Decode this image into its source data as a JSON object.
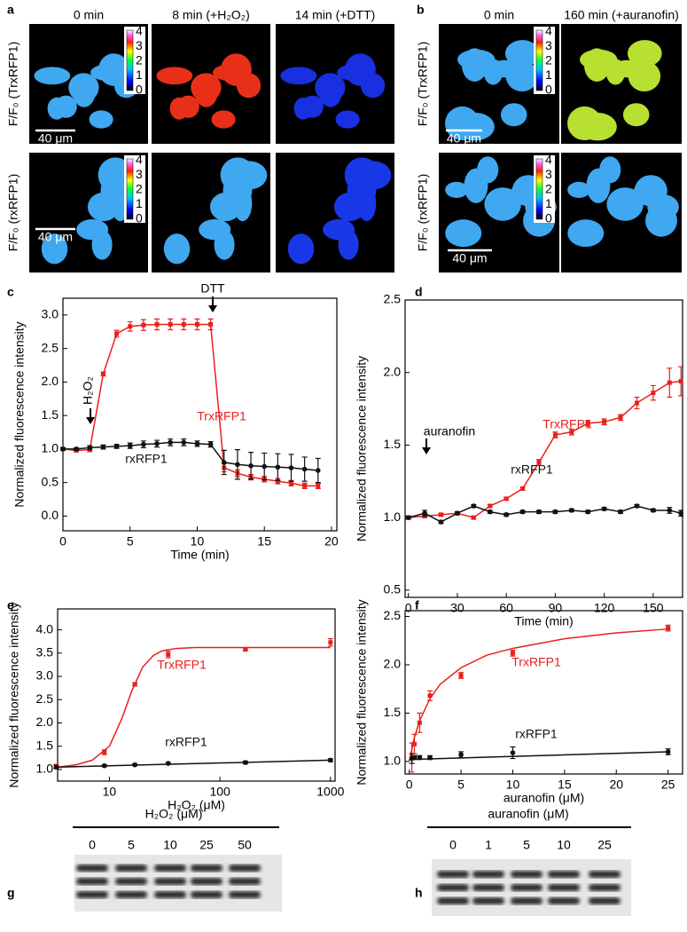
{
  "panel_labels": [
    "a",
    "b",
    "c",
    "d",
    "e",
    "f",
    "g",
    "h"
  ],
  "images": [
    {
      "columns": [
        "0 min",
        "8 min (+H₂O₂)",
        "14 min (+DTT)"
      ],
      "rows": [
        "F/F₀ (TrxRFP1)",
        "F/F₀ (rxRFP1)"
      ],
      "scale_bar": "40 μm",
      "colorbar_ticks": [
        0,
        1,
        2,
        3,
        4
      ]
    },
    {
      "columns": [
        "0 min",
        "160 min (+auranofin)"
      ],
      "rows": [
        "F/F₀ (TrxRFP1)",
        "F/F₀ (rxRFP1)"
      ],
      "scale_bar": "40 μm",
      "colorbar_ticks": [
        0,
        1,
        2,
        3,
        4
      ]
    }
  ],
  "chart_data": [
    {
      "type": "line",
      "xlabel": "Time (min)",
      "ylabel": "Normalized fluorescence intensity",
      "xlim": [
        0,
        20.4
      ],
      "ylim": [
        -0.22,
        3.25
      ],
      "xticks": [
        0,
        5,
        10,
        15,
        20
      ],
      "yticks": [
        {
          "value": 0,
          "label": "0.0"
        },
        0.5,
        {
          "value": 1,
          "label": "1.0"
        },
        1.5,
        {
          "value": 2,
          "label": "2.0"
        },
        2.5,
        {
          "value": 3,
          "label": "3.0"
        }
      ],
      "annotations": [
        "DTT",
        "H₂O₂"
      ],
      "series": [
        {
          "name": "TrxRFP1",
          "color": "#e8201c",
          "marker": "square",
          "x": [
            0,
            1,
            2,
            3,
            4,
            5,
            6,
            7,
            8,
            9,
            10,
            11,
            12,
            13,
            14,
            15,
            16,
            17,
            18,
            19
          ],
          "values": [
            1.0,
            0.98,
            0.99,
            2.12,
            2.72,
            2.83,
            2.85,
            2.86,
            2.86,
            2.86,
            2.86,
            2.86,
            0.72,
            0.64,
            0.58,
            0.55,
            0.52,
            0.49,
            0.45,
            0.45
          ],
          "errors": [
            0.02,
            0.02,
            0.03,
            0.03,
            0.05,
            0.07,
            0.08,
            0.08,
            0.08,
            0.08,
            0.08,
            0.08,
            0.06,
            0.05,
            0.04,
            0.04,
            0.04,
            0.04,
            0.04,
            0.04
          ]
        },
        {
          "name": "rxRFP1",
          "color": "#111111",
          "marker": "circle",
          "x": [
            0,
            1,
            2,
            3,
            4,
            5,
            6,
            7,
            8,
            9,
            10,
            11,
            12,
            13,
            14,
            15,
            16,
            17,
            18,
            19
          ],
          "values": [
            1.0,
            1.0,
            1.02,
            1.03,
            1.04,
            1.05,
            1.07,
            1.08,
            1.1,
            1.1,
            1.08,
            1.07,
            0.8,
            0.77,
            0.75,
            0.74,
            0.73,
            0.72,
            0.7,
            0.68
          ],
          "errors": [
            0.02,
            0.02,
            0.03,
            0.03,
            0.03,
            0.04,
            0.05,
            0.05,
            0.05,
            0.05,
            0.04,
            0.04,
            0.18,
            0.22,
            0.2,
            0.2,
            0.2,
            0.2,
            0.18,
            0.18
          ]
        }
      ]
    },
    {
      "type": "line",
      "xlabel": "Time (min)",
      "ylabel": "Normalized fluorescence intensity",
      "xlim": [
        -2,
        168
      ],
      "ylim": [
        0.45,
        2.5
      ],
      "xticks": [
        0,
        30,
        60,
        90,
        120,
        150
      ],
      "yticks": [
        0.5,
        {
          "value": 1,
          "label": "1.0"
        },
        1.5,
        {
          "value": 2,
          "label": "2.0"
        },
        2.5
      ],
      "annotations": [
        "auranofin"
      ],
      "series": [
        {
          "name": "TrxRFP1",
          "color": "#e8201c",
          "marker": "square",
          "x": [
            0,
            10,
            20,
            30,
            40,
            50,
            60,
            70,
            80,
            90,
            100,
            110,
            120,
            130,
            140,
            150,
            160,
            167
          ],
          "values": [
            1.0,
            1.01,
            1.02,
            1.03,
            1.0,
            1.08,
            1.13,
            1.2,
            1.38,
            1.57,
            1.59,
            1.65,
            1.66,
            1.69,
            1.79,
            1.86,
            1.93,
            1.94
          ],
          "errors": [
            0.01,
            0.01,
            0.01,
            0.01,
            0.01,
            0.01,
            0.01,
            0.01,
            0.02,
            0.02,
            0.02,
            0.02,
            0.02,
            0.02,
            0.04,
            0.05,
            0.1,
            0.1
          ]
        },
        {
          "name": "rxRFP1",
          "color": "#111111",
          "marker": "circle",
          "x": [
            0,
            10,
            20,
            30,
            40,
            50,
            60,
            70,
            80,
            90,
            100,
            110,
            120,
            130,
            140,
            150,
            160,
            167
          ],
          "values": [
            1.0,
            1.03,
            0.97,
            1.03,
            1.08,
            1.04,
            1.02,
            1.04,
            1.04,
            1.04,
            1.05,
            1.04,
            1.06,
            1.04,
            1.08,
            1.05,
            1.05,
            1.03
          ],
          "errors": [
            0.01,
            0.02,
            0.01,
            0.01,
            0.01,
            0.01,
            0.01,
            0.01,
            0.01,
            0.01,
            0.01,
            0.01,
            0.01,
            0.01,
            0.01,
            0.01,
            0.02,
            0.02
          ]
        }
      ]
    },
    {
      "type": "scatter",
      "xlabel": "H₂O₂ (μM)",
      "ylabel": "Normalized fluorescence intensity",
      "xscale": "log",
      "xlim": [
        3.4,
        1100
      ],
      "ylim": [
        0.75,
        4.45
      ],
      "xticks": [
        10,
        100,
        1000
      ],
      "yticks": [
        {
          "value": 1,
          "label": "1.0"
        },
        1.5,
        {
          "value": 2,
          "label": "2.0"
        },
        2.5,
        {
          "value": 3,
          "label": "3.0"
        },
        3.5,
        {
          "value": 4,
          "label": "4.0"
        }
      ],
      "series": [
        {
          "name": "TrxRFP1",
          "color": "#e8201c",
          "marker": "square",
          "x": [
            3.3,
            9,
            17,
            34,
            170,
            1000
          ],
          "values": [
            1.07,
            1.37,
            2.83,
            3.47,
            3.58,
            3.73
          ],
          "errors": [
            0.04,
            0.05,
            0.03,
            0.07,
            0.03,
            0.08
          ]
        },
        {
          "name": "rxRFP1",
          "color": "#111111",
          "marker": "circle",
          "x": [
            3.3,
            9,
            17,
            34,
            170,
            1000
          ],
          "values": [
            1.05,
            1.08,
            1.1,
            1.13,
            1.15,
            1.2
          ],
          "errors": [
            0.03,
            0.02,
            0.02,
            0.02,
            0.03,
            0.03
          ]
        }
      ],
      "fits": [
        {
          "color": "#e8201c",
          "x": [
            3.4,
            5,
            7,
            10,
            13,
            16,
            20,
            25,
            30,
            40,
            60,
            100,
            300,
            1000
          ],
          "values": [
            1.05,
            1.1,
            1.2,
            1.5,
            2.1,
            2.7,
            3.2,
            3.45,
            3.55,
            3.6,
            3.62,
            3.62,
            3.62,
            3.62
          ]
        },
        {
          "color": "#111111",
          "x": [
            3.4,
            1000
          ],
          "values": [
            1.05,
            1.2
          ]
        }
      ]
    },
    {
      "type": "scatter",
      "xlabel": "auranofin (μM)",
      "ylabel": "Normalized fluorescence intensity",
      "xlim": [
        -0.4,
        26.4
      ],
      "ylim": [
        0.87,
        2.56
      ],
      "xticks": [
        0,
        5,
        10,
        15,
        20,
        25
      ],
      "yticks": [
        {
          "value": 1,
          "label": "1.0"
        },
        1.5,
        {
          "value": 2,
          "label": "2.0"
        },
        2.5
      ],
      "series": [
        {
          "name": "TrxRFP1",
          "color": "#e8201c",
          "marker": "square",
          "x": [
            0.25,
            0.5,
            1,
            2,
            5,
            10,
            25
          ],
          "values": [
            1.04,
            1.18,
            1.4,
            1.68,
            1.89,
            2.12,
            2.38
          ],
          "errors": [
            0.15,
            0.1,
            0.1,
            0.05,
            0.03,
            0.03,
            0.03
          ]
        },
        {
          "name": "rxRFP1",
          "color": "#111111",
          "marker": "circle",
          "x": [
            0.25,
            0.5,
            1,
            2,
            5,
            10,
            25
          ],
          "values": [
            1.03,
            1.04,
            1.04,
            1.04,
            1.07,
            1.09,
            1.1
          ],
          "errors": [
            0.05,
            0.02,
            0.02,
            0.02,
            0.03,
            0.06,
            0.03
          ]
        }
      ],
      "fits": [
        {
          "color": "#e8201c",
          "x": [
            0,
            0.5,
            1,
            2,
            3,
            5,
            7.5,
            10,
            15,
            20,
            25
          ],
          "values": [
            1.0,
            1.25,
            1.42,
            1.65,
            1.8,
            1.97,
            2.1,
            2.17,
            2.27,
            2.33,
            2.37
          ]
        },
        {
          "color": "#111111",
          "x": [
            0,
            25
          ],
          "values": [
            1.02,
            1.1
          ]
        }
      ]
    }
  ],
  "blots": [
    {
      "title": "H₂O₂ (μM)",
      "lanes": [
        0,
        5,
        10,
        25,
        50
      ]
    },
    {
      "title": "auranofin (μM)",
      "lanes": [
        0,
        1,
        5,
        10,
        25
      ]
    }
  ]
}
